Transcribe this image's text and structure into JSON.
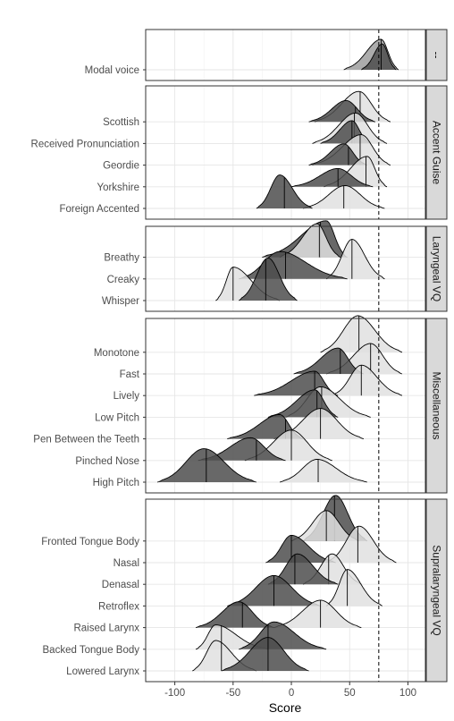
{
  "chart_data": {
    "type": "ridgeline",
    "xlabel": "Score",
    "ylabel": "",
    "xlim": [
      -125,
      115
    ],
    "x_ticks": [
      -100,
      -50,
      0,
      50,
      100
    ],
    "x_tick_labels": [
      "-100",
      "-50",
      "0",
      "50",
      "100"
    ],
    "reference_line": {
      "x": 75,
      "style": "dashed"
    },
    "grid": true,
    "fill_colors": [
      "#4d4d4d",
      "#9e9e9e",
      "#e0e0e0"
    ],
    "panels": [
      {
        "strip": "--",
        "categories": [
          {
            "label": "Modal voice",
            "ridges": [
              {
                "center": 77,
                "left": 45,
                "right": 92,
                "median": 77,
                "height": 1.0,
                "shade": 1
              },
              {
                "center": 78,
                "left": 60,
                "right": 90,
                "median": 77,
                "height": 0.85,
                "shade": 0
              }
            ]
          }
        ]
      },
      {
        "strip": "Accent Guise",
        "categories": [
          {
            "label": "Scottish",
            "ridges": [
              {
                "center": 58,
                "left": 20,
                "right": 85,
                "median": 59,
                "height": 1.0,
                "shade": 2
              },
              {
                "center": 47,
                "left": 15,
                "right": 72,
                "median": 55,
                "height": 0.7,
                "shade": 0
              }
            ]
          },
          {
            "label": "Received Pronunciation",
            "ridges": [
              {
                "center": 55,
                "left": 18,
                "right": 82,
                "median": 54,
                "height": 1.0,
                "shade": 2
              },
              {
                "center": 52,
                "left": 25,
                "right": 68,
                "median": 52,
                "height": 0.75,
                "shade": 0
              }
            ]
          },
          {
            "label": "Geordie",
            "ridges": [
              {
                "center": 60,
                "left": 18,
                "right": 85,
                "median": 59,
                "height": 1.0,
                "shade": 2
              },
              {
                "center": 45,
                "left": 15,
                "right": 65,
                "median": 49,
                "height": 0.7,
                "shade": 0
              }
            ]
          },
          {
            "label": "Yorkshire",
            "ridges": [
              {
                "center": 65,
                "left": 28,
                "right": 82,
                "median": 64,
                "height": 1.0,
                "shade": 2
              },
              {
                "center": 40,
                "left": 0,
                "right": 70,
                "median": 40,
                "height": 0.6,
                "shade": 0
              }
            ]
          },
          {
            "label": "Foreign Accented",
            "ridges": [
              {
                "center": 46,
                "left": 10,
                "right": 80,
                "median": 45,
                "height": 0.75,
                "shade": 2
              },
              {
                "center": -10,
                "left": -30,
                "right": 18,
                "median": -6,
                "height": 1.1,
                "shade": 0
              }
            ]
          }
        ]
      },
      {
        "strip": "Laryngeal VQ",
        "categories": [
          {
            "label": "Breathy",
            "ridges": [
              {
                "center": 30,
                "left": -25,
                "right": 48,
                "median": 25,
                "height": 1.2,
                "shade": 0
              },
              {
                "center": 22,
                "left": -10,
                "right": 42,
                "median": 24,
                "height": 1.1,
                "shade": 2
              }
            ]
          },
          {
            "label": "Creaky",
            "ridges": [
              {
                "center": 52,
                "left": 30,
                "right": 80,
                "median": 52,
                "height": 1.3,
                "shade": 2
              },
              {
                "center": -10,
                "left": -45,
                "right": 48,
                "median": -5,
                "height": 0.9,
                "shade": 0
              }
            ]
          },
          {
            "label": "Whisper",
            "ridges": [
              {
                "center": -50,
                "left": -65,
                "right": -10,
                "median": -50,
                "height": 1.1,
                "shade": 2
              },
              {
                "center": -20,
                "left": -45,
                "right": 5,
                "median": -22,
                "height": 1.4,
                "shade": 0
              }
            ]
          }
        ]
      },
      {
        "strip": "Miscellaneous",
        "categories": [
          {
            "label": "Monotone",
            "ridges": [
              {
                "center": 57,
                "left": 25,
                "right": 95,
                "median": 58,
                "height": 1.2,
                "shade": 2
              }
            ]
          },
          {
            "label": "Fast",
            "ridges": [
              {
                "center": 68,
                "left": 30,
                "right": 95,
                "median": 68,
                "height": 1.0,
                "shade": 2
              },
              {
                "center": 40,
                "left": 2,
                "right": 62,
                "median": 42,
                "height": 0.85,
                "shade": 0
              }
            ]
          },
          {
            "label": "Lively",
            "ridges": [
              {
                "center": 60,
                "left": 35,
                "right": 95,
                "median": 60,
                "height": 1.0,
                "shade": 2
              },
              {
                "center": 20,
                "left": -32,
                "right": 40,
                "median": 20,
                "height": 0.8,
                "shade": 0
              }
            ]
          },
          {
            "label": "Low Pitch",
            "ridges": [
              {
                "center": 25,
                "left": -5,
                "right": 68,
                "median": 26,
                "height": 1.0,
                "shade": 2
              },
              {
                "center": 20,
                "left": -20,
                "right": 40,
                "median": 22,
                "height": 0.9,
                "shade": 0
              }
            ]
          },
          {
            "label": "Pen Between the Teeth",
            "ridges": [
              {
                "center": 25,
                "left": -15,
                "right": 62,
                "median": 25,
                "height": 1.0,
                "shade": 2
              },
              {
                "center": -10,
                "left": -55,
                "right": 10,
                "median": -5,
                "height": 0.8,
                "shade": 0
              }
            ]
          },
          {
            "label": "Pinched Nose",
            "ridges": [
              {
                "center": 0,
                "left": -40,
                "right": 35,
                "median": 0,
                "height": 1.0,
                "shade": 2
              },
              {
                "center": -35,
                "left": -80,
                "right": -5,
                "median": -30,
                "height": 0.75,
                "shade": 0
              }
            ]
          },
          {
            "label": "High Pitch",
            "ridges": [
              {
                "center": 22,
                "left": -10,
                "right": 65,
                "median": 23,
                "height": 0.75,
                "shade": 2
              },
              {
                "center": -75,
                "left": -115,
                "right": -30,
                "median": -73,
                "height": 1.1,
                "shade": 0
              }
            ]
          }
        ]
      },
      {
        "strip": "Supralaryngeal VQ",
        "categories": [
          {
            "label": "Fronted Tongue Body",
            "ridges": [
              {
                "center": 38,
                "left": 10,
                "right": 65,
                "median": 37,
                "height": 1.5,
                "shade": 0
              },
              {
                "center": 30,
                "left": 0,
                "right": 58,
                "median": 30,
                "height": 1.0,
                "shade": 2
              }
            ]
          },
          {
            "label": "Nasal",
            "ridges": [
              {
                "center": 58,
                "left": 30,
                "right": 90,
                "median": 57,
                "height": 1.2,
                "shade": 2
              },
              {
                "center": 0,
                "left": -22,
                "right": 38,
                "median": 0,
                "height": 0.9,
                "shade": 0
              }
            ]
          },
          {
            "label": "Denasal",
            "ridges": [
              {
                "center": 35,
                "left": 10,
                "right": 60,
                "median": 32,
                "height": 1.0,
                "shade": 2
              },
              {
                "center": 5,
                "left": -20,
                "right": 40,
                "median": 3,
                "height": 1.0,
                "shade": 0
              }
            ]
          },
          {
            "label": "Retroflex",
            "ridges": [
              {
                "center": 48,
                "left": 30,
                "right": 78,
                "median": 48,
                "height": 1.2,
                "shade": 2
              },
              {
                "center": -15,
                "left": -55,
                "right": 25,
                "median": -15,
                "height": 1.0,
                "shade": 0
              }
            ]
          },
          {
            "label": "Raised Larynx",
            "ridges": [
              {
                "center": 25,
                "left": -15,
                "right": 60,
                "median": 25,
                "height": 0.9,
                "shade": 2
              },
              {
                "center": -45,
                "left": -82,
                "right": -15,
                "median": -42,
                "height": 0.85,
                "shade": 0
              }
            ]
          },
          {
            "label": "Backed Tongue Body",
            "ridges": [
              {
                "center": -65,
                "left": -82,
                "right": -20,
                "median": -60,
                "height": 0.8,
                "shade": 2
              },
              {
                "center": -15,
                "left": -45,
                "right": 30,
                "median": -20,
                "height": 0.9,
                "shade": 0
              }
            ]
          },
          {
            "label": "Lowered Larynx",
            "ridges": [
              {
                "center": -65,
                "left": -85,
                "right": -30,
                "median": -60,
                "height": 1.0,
                "shade": 2
              },
              {
                "center": -20,
                "left": -60,
                "right": 15,
                "median": -20,
                "height": 1.1,
                "shade": 0
              }
            ]
          }
        ]
      }
    ]
  }
}
